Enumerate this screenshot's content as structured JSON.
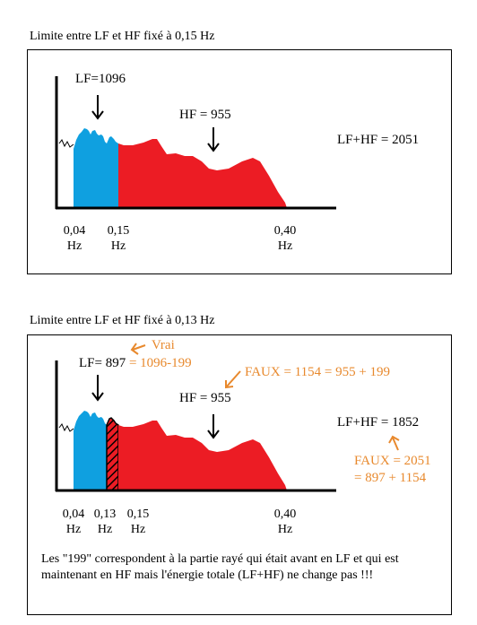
{
  "panel1": {
    "caption": "Limite entre LF et HF fixé à 0,15 Hz",
    "lf_label": "LF=1096",
    "hf_label": "HF = 955",
    "total_label": "LF+HF = 2051",
    "ticks": [
      {
        "value": "0,04",
        "unit": "Hz"
      },
      {
        "value": "0,15",
        "unit": "Hz"
      },
      {
        "value": "0,40",
        "unit": "Hz"
      }
    ]
  },
  "panel2": {
    "caption": "Limite entre LF et HF fixé à 0,13 Hz",
    "lf_label": "LF= 897",
    "lf_correct_calc": "= 1096-199",
    "vrai_label": "Vrai",
    "faux_hf_label": "FAUX = 1154 = 955 + 199",
    "hf_label": "HF = 955",
    "total_label": "LF+HF = 1852",
    "faux_total_line1": "FAUX = 2051",
    "faux_total_line2": "= 897 + 1154",
    "ticks": [
      {
        "value": "0,04",
        "unit": "Hz"
      },
      {
        "value": "0,13",
        "unit": "Hz"
      },
      {
        "value": "0,15",
        "unit": "Hz"
      },
      {
        "value": "0,40",
        "unit": "Hz"
      }
    ],
    "note": "Les \"199\" correspondent à la partie rayé qui était avant en LF et qui est maintenant en HF mais l'énergie totale (LF+HF) ne change pas !!!"
  },
  "colors": {
    "lf": "#0fa0e0",
    "hf": "#ec1c24",
    "annotation": "#e8892d"
  }
}
